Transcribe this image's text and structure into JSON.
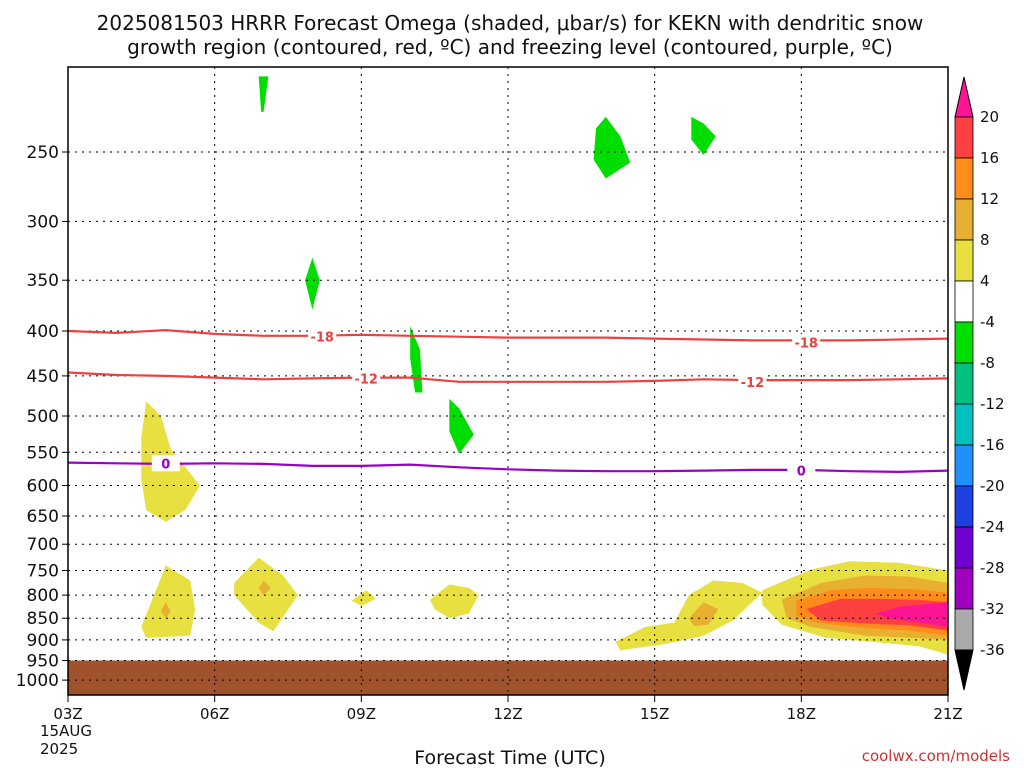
{
  "chart_data": {
    "type": "heatmap",
    "title_line1": "2025081503 HRRR Forecast Omega (shaded, μbar/s) for KEKN with dendritic snow",
    "title_line2": "growth region (contoured, red, ºC) and freezing level (contoured, purple, ºC)",
    "xlabel": "Forecast Time (UTC)",
    "ylabel": "",
    "x_ticks": [
      "03Z",
      "06Z",
      "09Z",
      "12Z",
      "15Z",
      "18Z",
      "21Z"
    ],
    "x_range_hours": [
      0,
      18
    ],
    "date_label_line1": "15AUG",
    "date_label_line2": "2025",
    "y_ticks": [
      250,
      300,
      350,
      400,
      450,
      500,
      550,
      600,
      650,
      700,
      750,
      800,
      850,
      900,
      950,
      1000
    ],
    "y_range_mb": [
      200,
      1040
    ],
    "y_scale": "log",
    "grid": "dotted",
    "ground_level_mb": 950,
    "ground_color": "#a0522d",
    "colorbar": {
      "labels": [
        "20",
        "16",
        "12",
        "8",
        "4",
        "-4",
        "-8",
        "-12",
        "-16",
        "-20",
        "-24",
        "-28",
        "-32",
        "-36"
      ],
      "colors": [
        "#ff1493",
        "#ff4040",
        "#ff8c1a",
        "#e8b030",
        "#e8e040",
        "#ffffff",
        "#00dd00",
        "#00c080",
        "#00c0c0",
        "#1e90ff",
        "#1e40e0",
        "#7000d0",
        "#a000c0",
        "#aaaaaa",
        "#000000"
      ]
    },
    "contours": [
      {
        "label": "-18",
        "color": "#ee4040",
        "x": [
          0,
          1,
          2,
          3,
          4,
          5,
          6,
          7,
          8,
          9,
          10,
          11,
          12,
          13,
          14,
          15,
          16,
          17,
          18
        ],
        "y": [
          400,
          402,
          399,
          403,
          405,
          405,
          404,
          405,
          406,
          407,
          407,
          407,
          408,
          409,
          410,
          410,
          410,
          409,
          408
        ]
      },
      {
        "label": "-12",
        "color": "#ee4040",
        "x": [
          0,
          1,
          2,
          3,
          4,
          5,
          6,
          7,
          8,
          9,
          10,
          11,
          12,
          13,
          14,
          15,
          16,
          17,
          18
        ],
        "y": [
          446,
          449,
          450,
          452,
          454,
          453,
          452,
          452,
          457,
          457,
          457,
          457,
          456,
          454,
          455,
          455,
          455,
          454,
          453
        ]
      },
      {
        "label": "0",
        "color": "#9b00c8",
        "x": [
          0,
          1,
          2,
          3,
          4,
          5,
          6,
          7,
          8,
          9,
          10,
          11,
          12,
          13,
          14,
          15,
          16,
          17,
          18
        ],
        "y": [
          565,
          566,
          567,
          566,
          567,
          570,
          570,
          568,
          572,
          575,
          577,
          578,
          578,
          577,
          576,
          576,
          578,
          579,
          577
        ]
      }
    ],
    "contour_labels": [
      {
        "label": "-18",
        "x": 5.2,
        "y": 406
      },
      {
        "label": "-18",
        "x": 15.1,
        "y": 412
      },
      {
        "label": "-12",
        "x": 6.1,
        "y": 453
      },
      {
        "label": "-12",
        "x": 14.0,
        "y": 457
      },
      {
        "label": "0",
        "x": 2.0,
        "y": 566
      },
      {
        "label": "0",
        "x": 15.0,
        "y": 577
      }
    ],
    "omega_regions": [
      {
        "value": 8,
        "color": "#e8e040",
        "points": [
          [
            1.6,
            481
          ],
          [
            1.9,
            500
          ],
          [
            2.1,
            545
          ],
          [
            2.7,
            600
          ],
          [
            2.4,
            640
          ],
          [
            2.0,
            660
          ],
          [
            1.6,
            640
          ],
          [
            1.5,
            590
          ],
          [
            1.5,
            530
          ]
        ]
      },
      {
        "value": 8,
        "color": "#e8e040",
        "points": [
          [
            1.5,
            870
          ],
          [
            1.8,
            790
          ],
          [
            2.0,
            740
          ],
          [
            2.5,
            770
          ],
          [
            2.6,
            830
          ],
          [
            2.5,
            890
          ],
          [
            1.6,
            895
          ]
        ]
      },
      {
        "value": 12,
        "color": "#e8b030",
        "points": [
          [
            2.0,
            815
          ],
          [
            2.1,
            835
          ],
          [
            2.0,
            850
          ],
          [
            1.9,
            835
          ]
        ]
      },
      {
        "value": 8,
        "color": "#e8e040",
        "points": [
          [
            3.4,
            775
          ],
          [
            3.9,
            725
          ],
          [
            4.4,
            760
          ],
          [
            4.7,
            800
          ],
          [
            4.2,
            880
          ],
          [
            3.9,
            860
          ],
          [
            3.4,
            800
          ]
        ]
      },
      {
        "value": 12,
        "color": "#e8b030",
        "points": [
          [
            4.0,
            770
          ],
          [
            4.15,
            785
          ],
          [
            4.0,
            800
          ],
          [
            3.9,
            785
          ]
        ]
      },
      {
        "value": 8,
        "color": "#e8e040",
        "points": [
          [
            5.8,
            812
          ],
          [
            6.1,
            790
          ],
          [
            6.3,
            808
          ],
          [
            6.0,
            823
          ]
        ]
      },
      {
        "value": 8,
        "color": "#e8e040",
        "points": [
          [
            7.4,
            810
          ],
          [
            7.8,
            778
          ],
          [
            8.2,
            785
          ],
          [
            8.4,
            800
          ],
          [
            8.2,
            840
          ],
          [
            7.8,
            850
          ],
          [
            7.5,
            830
          ]
        ]
      },
      {
        "value": 8,
        "color": "#e8e040",
        "points": [
          [
            11.2,
            905
          ],
          [
            11.8,
            870
          ],
          [
            12.4,
            860
          ],
          [
            12.7,
            800
          ],
          [
            13.2,
            770
          ],
          [
            13.8,
            775
          ],
          [
            14.2,
            795
          ],
          [
            13.6,
            855
          ],
          [
            13.0,
            890
          ],
          [
            12.2,
            910
          ],
          [
            11.3,
            925
          ]
        ]
      },
      {
        "value": 12,
        "color": "#e8b030",
        "points": [
          [
            12.7,
            850
          ],
          [
            13.0,
            815
          ],
          [
            13.3,
            830
          ],
          [
            13.1,
            865
          ],
          [
            12.8,
            868
          ]
        ]
      },
      {
        "value": 4,
        "color": "#e8e040",
        "points": [
          [
            14.2,
            790
          ],
          [
            15.2,
            748
          ],
          [
            16.0,
            732
          ],
          [
            17.0,
            735
          ],
          [
            18,
            750
          ],
          [
            18,
            935
          ],
          [
            17.4,
            915
          ],
          [
            16.5,
            905
          ],
          [
            15.5,
            895
          ],
          [
            14.6,
            865
          ],
          [
            14.2,
            820
          ]
        ]
      },
      {
        "value": 8,
        "color": "#e8b030",
        "points": [
          [
            14.6,
            810
          ],
          [
            15.4,
            775
          ],
          [
            16.3,
            760
          ],
          [
            17.2,
            762
          ],
          [
            18,
            775
          ],
          [
            18,
            900
          ],
          [
            17.2,
            895
          ],
          [
            16.3,
            890
          ],
          [
            15.2,
            870
          ],
          [
            14.7,
            850
          ]
        ]
      },
      {
        "value": 12,
        "color": "#ff8c1a",
        "points": [
          [
            14.9,
            812
          ],
          [
            15.6,
            790
          ],
          [
            16.4,
            785
          ],
          [
            17.3,
            788
          ],
          [
            18,
            795
          ],
          [
            18,
            890
          ],
          [
            17.2,
            878
          ],
          [
            16.2,
            872
          ],
          [
            15.3,
            860
          ],
          [
            14.9,
            845
          ]
        ]
      },
      {
        "value": 16,
        "color": "#ff4040",
        "points": [
          [
            15.1,
            830
          ],
          [
            15.8,
            808
          ],
          [
            16.6,
            808
          ],
          [
            17.4,
            810
          ],
          [
            18,
            815
          ],
          [
            18,
            878
          ],
          [
            17.2,
            866
          ],
          [
            16.3,
            862
          ],
          [
            15.4,
            855
          ]
        ]
      },
      {
        "value": 20,
        "color": "#ff1493",
        "points": [
          [
            16.5,
            840
          ],
          [
            17.0,
            825
          ],
          [
            18,
            815
          ],
          [
            18,
            870
          ],
          [
            17.3,
            858
          ],
          [
            16.8,
            850
          ]
        ]
      },
      {
        "value": -8,
        "color": "#00dd00",
        "points": [
          [
            3.9,
            205
          ],
          [
            4.1,
            205
          ],
          [
            4.0,
            225
          ],
          [
            3.95,
            225
          ]
        ]
      },
      {
        "value": -8,
        "color": "#00dd00",
        "points": [
          [
            5.0,
            330
          ],
          [
            5.15,
            350
          ],
          [
            5.0,
            378
          ],
          [
            4.85,
            350
          ]
        ]
      },
      {
        "value": -8,
        "color": "#00dd00",
        "points": [
          [
            7.0,
            395
          ],
          [
            7.2,
            420
          ],
          [
            7.25,
            470
          ],
          [
            7.1,
            470
          ],
          [
            7.0,
            430
          ]
        ]
      },
      {
        "value": -8,
        "color": "#00dd00",
        "points": [
          [
            7.8,
            478
          ],
          [
            8.0,
            490
          ],
          [
            8.3,
            525
          ],
          [
            8.0,
            552
          ],
          [
            7.8,
            520
          ]
        ]
      },
      {
        "value": -8,
        "color": "#00dd00",
        "points": [
          [
            11.0,
            228
          ],
          [
            11.3,
            240
          ],
          [
            11.5,
            257
          ],
          [
            11.0,
            268
          ],
          [
            10.75,
            255
          ],
          [
            10.8,
            235
          ]
        ]
      },
      {
        "value": -8,
        "color": "#00dd00",
        "points": [
          [
            12.75,
            228
          ],
          [
            13.0,
            232
          ],
          [
            13.25,
            240
          ],
          [
            13.0,
            252
          ],
          [
            12.75,
            242
          ]
        ]
      }
    ]
  },
  "footer": {
    "credit": "coolwx.com/models"
  }
}
